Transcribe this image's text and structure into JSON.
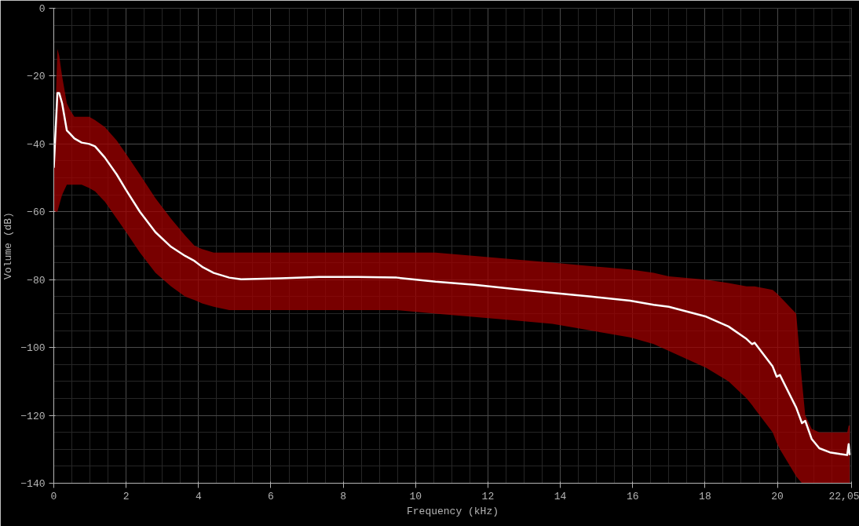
{
  "chart_data": {
    "type": "line",
    "xlabel": "Frequency (kHz)",
    "ylabel": "Volume (dB)",
    "x": [
      0.0,
      0.1,
      0.15,
      0.23,
      0.36,
      0.45,
      0.57,
      0.77,
      0.98,
      1.14,
      1.41,
      1.74,
      2.0,
      2.38,
      2.81,
      3.24,
      3.63,
      3.89,
      4.1,
      4.42,
      4.85,
      5.18,
      6.26,
      7.33,
      8.4,
      9.48,
      10.55,
      11.63,
      12.7,
      13.78,
      14.85,
      15.93,
      16.58,
      17.0,
      18.03,
      18.65,
      19.15,
      19.3,
      19.37,
      19.87,
      19.98,
      20.07,
      20.52,
      20.68,
      20.77,
      20.95,
      21.16,
      21.45,
      21.73,
      21.93,
      21.97,
      22.0
    ],
    "series": [
      {
        "color": "#ffffff",
        "values": [
          -47,
          -25,
          -25,
          -28,
          -36,
          -37,
          -38.4,
          -39.6,
          -40,
          -40.7,
          -44,
          -49,
          -53.6,
          -60,
          -66,
          -70.3,
          -73,
          -74.5,
          -76.2,
          -78,
          -79.4,
          -79.9,
          -79.6,
          -79.2,
          -79.2,
          -79.4,
          -80.6,
          -81.5,
          -82.7,
          -83.9,
          -85,
          -86.2,
          -87.4,
          -88,
          -90.9,
          -93.8,
          -97.5,
          -99,
          -98.6,
          -105.6,
          -108.6,
          -108.1,
          -117.7,
          -122.3,
          -121.6,
          -127,
          -129.7,
          -130.9,
          -131.4,
          -131.7,
          -128.5,
          -131.7
        ],
        "lower": [
          -60,
          -60,
          -58,
          -55,
          -52,
          -52,
          -52,
          -52,
          -53,
          -54,
          -57,
          -62,
          -66,
          -72,
          -78,
          -82,
          -85,
          -86,
          -87,
          -88,
          -89,
          -89,
          -89,
          -89,
          -89,
          -89,
          -90,
          -91,
          -92,
          -93,
          -95,
          -97,
          -99,
          -101,
          -106,
          -110,
          -115,
          -117,
          -118,
          -125,
          -128,
          -130,
          -138,
          -140,
          -140,
          -140,
          -140,
          -140,
          -140,
          -140,
          -140,
          -140
        ],
        "upper": [
          -47,
          -12,
          -14,
          -20,
          -28,
          -30,
          -32,
          -32,
          -32,
          -33,
          -35,
          -39,
          -43,
          -49,
          -56,
          -62,
          -67,
          -70,
          -71,
          -72,
          -72,
          -72,
          -72,
          -72,
          -72,
          -72,
          -72,
          -73,
          -74,
          -75,
          -76,
          -77,
          -78,
          -79,
          -80,
          -81,
          -82,
          -82,
          -82,
          -83,
          -84,
          -85,
          -90,
          -110,
          -120,
          -124,
          -125,
          -125,
          -125,
          -125,
          -123,
          -123
        ]
      }
    ],
    "xlim": [
      0,
      22.05
    ],
    "ylim": [
      -140,
      0
    ],
    "xticks": [
      0,
      2,
      4,
      6,
      8,
      10,
      12,
      14,
      16,
      18,
      20,
      {
        "value": 22.05,
        "label": "22,05"
      }
    ],
    "yticks": [
      -140,
      -120,
      -100,
      -80,
      -60,
      -40,
      -20,
      0
    ],
    "grid": true,
    "marker": "none",
    "line_style": "solid"
  }
}
